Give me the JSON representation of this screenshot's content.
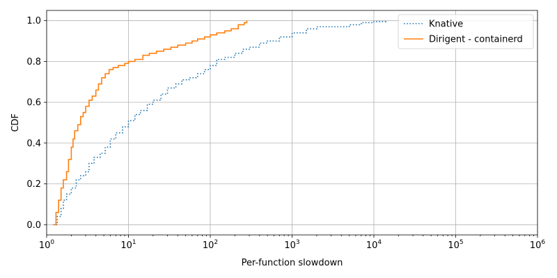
{
  "chart_data": {
    "type": "line",
    "xlabel": "Per-function slowdown",
    "ylabel": "CDF",
    "xscale": "log",
    "xlim": [
      1,
      1000000
    ],
    "ylim": [
      -0.05,
      1.05
    ],
    "x_ticks": [
      1,
      10,
      100,
      1000,
      10000,
      100000,
      1000000
    ],
    "x_tick_labels": [
      {
        "base": "10",
        "exp": "0"
      },
      {
        "base": "10",
        "exp": "1"
      },
      {
        "base": "10",
        "exp": "2"
      },
      {
        "base": "10",
        "exp": "3"
      },
      {
        "base": "10",
        "exp": "4"
      },
      {
        "base": "10",
        "exp": "5"
      },
      {
        "base": "10",
        "exp": "6"
      }
    ],
    "y_ticks": [
      0.0,
      0.2,
      0.4,
      0.6,
      0.8,
      1.0
    ],
    "y_tick_labels": [
      "0.0",
      "0.2",
      "0.4",
      "0.6",
      "0.8",
      "1.0"
    ],
    "grid": true,
    "legend_position": "top-right",
    "series": [
      {
        "name": "Knative",
        "color": "#1f77b4",
        "style": "dotted",
        "x": [
          1.2,
          1.35,
          1.5,
          1.6,
          1.75,
          2.0,
          2.3,
          2.6,
          3.0,
          3.3,
          3.8,
          4.5,
          5.2,
          6.0,
          7.0,
          8.5,
          10,
          12,
          14,
          17,
          20,
          25,
          30,
          38,
          45,
          55,
          70,
          85,
          100,
          120,
          150,
          200,
          250,
          300,
          400,
          500,
          700,
          1000,
          1500,
          2000,
          3000,
          5000,
          7000,
          10000,
          14000
        ],
        "y": [
          0.0,
          0.04,
          0.08,
          0.12,
          0.15,
          0.18,
          0.22,
          0.24,
          0.26,
          0.3,
          0.33,
          0.35,
          0.38,
          0.42,
          0.45,
          0.48,
          0.51,
          0.54,
          0.56,
          0.59,
          0.61,
          0.64,
          0.67,
          0.69,
          0.71,
          0.72,
          0.74,
          0.76,
          0.78,
          0.81,
          0.82,
          0.84,
          0.86,
          0.87,
          0.89,
          0.9,
          0.92,
          0.94,
          0.96,
          0.97,
          0.97,
          0.98,
          0.99,
          0.995,
          1.0
        ]
      },
      {
        "name": "Dirigent - containerd",
        "color": "#ff7f0e",
        "style": "solid",
        "x": [
          1.2,
          1.3,
          1.4,
          1.5,
          1.6,
          1.75,
          1.85,
          2.0,
          2.1,
          2.2,
          2.4,
          2.6,
          2.8,
          3.0,
          3.3,
          3.6,
          4.0,
          4.3,
          4.7,
          5.2,
          5.8,
          6.5,
          7.5,
          9.0,
          10,
          12,
          15,
          18,
          22,
          27,
          33,
          40,
          50,
          60,
          70,
          85,
          100,
          120,
          150,
          180,
          220,
          260,
          280
        ],
        "y": [
          0.0,
          0.06,
          0.12,
          0.18,
          0.22,
          0.26,
          0.32,
          0.38,
          0.42,
          0.46,
          0.49,
          0.53,
          0.55,
          0.58,
          0.61,
          0.63,
          0.66,
          0.69,
          0.72,
          0.74,
          0.76,
          0.77,
          0.78,
          0.79,
          0.8,
          0.81,
          0.83,
          0.84,
          0.85,
          0.86,
          0.87,
          0.88,
          0.89,
          0.9,
          0.91,
          0.92,
          0.93,
          0.94,
          0.95,
          0.96,
          0.98,
          0.99,
          1.0
        ]
      }
    ]
  }
}
